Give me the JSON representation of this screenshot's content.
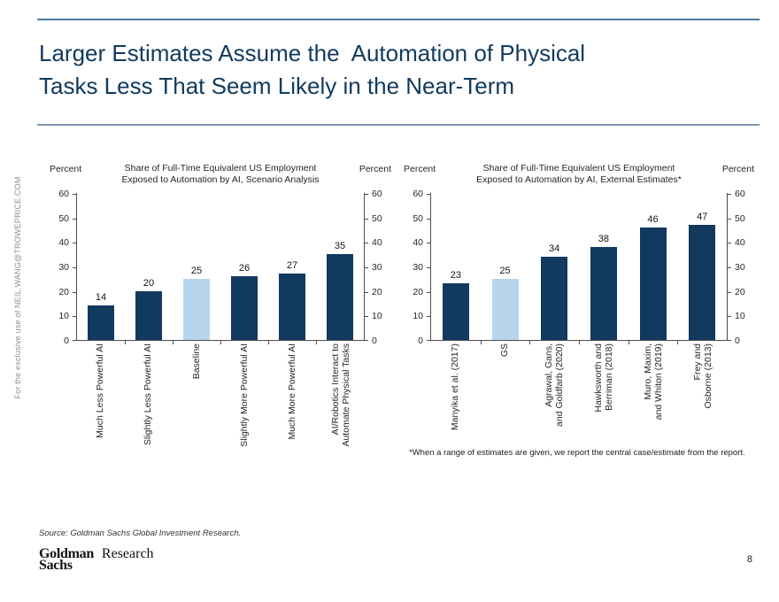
{
  "slide": {
    "title_lines": [
      "Larger Estimates Assume the  Automation of Physical",
      "Tasks Less That Seem Likely in the Near-Term"
    ],
    "watermark": "For the exclusive use of NEIL.WANG@TROWEPRICE.COM",
    "source": "Source: Goldman Sachs Global Investment Research.",
    "logo": {
      "line1": "Goldman",
      "line2": "Sachs",
      "division": "Research"
    },
    "page_number": "8",
    "accent_color": "#4f7aa6",
    "title_color": "#113a5e"
  },
  "chart_data": [
    {
      "type": "bar",
      "title": "Share of Full-Time Equivalent US Employment\nExposed to Automation by AI, Scenario Analysis",
      "ylabel_left": "Percent",
      "ylabel_right": "Percent",
      "ylim": [
        0,
        60
      ],
      "ytick_step": 10,
      "grid": false,
      "legend": false,
      "categories": [
        "Much Less Powerful AI",
        "Slightly Less Powerful AI",
        "Baseline",
        "Slightly More Powerful AI",
        "Much More Powerful AI",
        "AI/Robotics Interact to\nAutomate Physical Tasks"
      ],
      "values": [
        14,
        20,
        25,
        26,
        27,
        35
      ],
      "highlight_index": 2,
      "bar_color": "#12395f",
      "highlight_color": "#b7d5ec"
    },
    {
      "type": "bar",
      "title": "Share of Full-Time Equivalent US Employment\nExposed to Automation by AI, External Estimates*",
      "ylabel_left": "Percent",
      "ylabel_right": "Percent",
      "ylim": [
        0,
        60
      ],
      "ytick_step": 10,
      "grid": false,
      "legend": false,
      "categories": [
        "Manyika et al. (2017)",
        "GS",
        "Agrawal, Gans,\nand Goldfarb (2020)",
        "Hawksworth and\nBerriman (2018)",
        "Muro, Maxim,\nand Whiton (2019)",
        "Frey and\nOsborne (2013)"
      ],
      "values": [
        23,
        25,
        34,
        38,
        46,
        47
      ],
      "highlight_index": 1,
      "bar_color": "#12395f",
      "highlight_color": "#b7d5ec",
      "footnote": "*When a range of estimates are given, we report the central case/estimate from the report."
    }
  ]
}
